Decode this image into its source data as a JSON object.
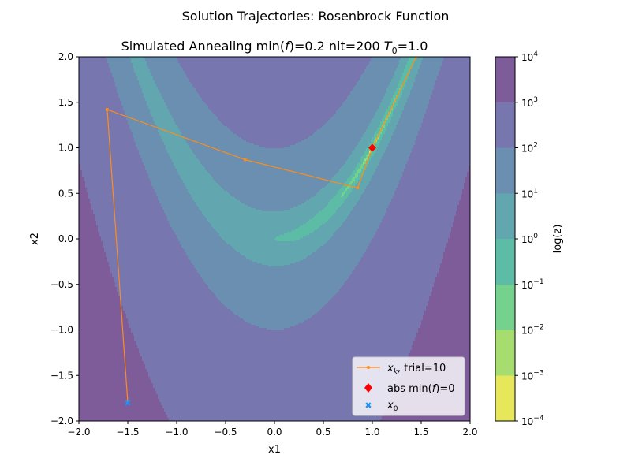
{
  "figure": {
    "suptitle": "Solution Trajectories: Rosenbrock Function",
    "title_prefix": "Simulated Annealing min(",
    "title_f": "f",
    "title_mid": ")=0.2 nit=200 ",
    "title_T": "T",
    "title_T_sub": "0",
    "title_suffix": "=1.0"
  },
  "chart_data": {
    "type": "contourf",
    "function": "Rosenbrock",
    "xlabel": "x1",
    "ylabel": "x2",
    "xlim": [
      -2.0,
      2.0
    ],
    "ylim": [
      -2.0,
      2.0
    ],
    "xticks": [
      "−2.0",
      "−1.5",
      "−1.0",
      "−0.5",
      "0.0",
      "0.5",
      "1.0",
      "1.5",
      "2.0"
    ],
    "yticks": [
      "−2.0",
      "−1.5",
      "−1.0",
      "−0.5",
      "0.0",
      "0.5",
      "1.0",
      "1.5",
      "2.0"
    ],
    "contour_levels_log10": [
      -4,
      -3,
      -2,
      -1,
      0,
      1,
      2,
      3,
      4
    ],
    "level_colors": [
      "#e6e75a",
      "#a7dd6e",
      "#74d18e",
      "#5cbca5",
      "#62a7b0",
      "#6a8fb0",
      "#7776ae",
      "#7e5c9a"
    ],
    "colorbar": {
      "label": "log(z)",
      "tick_exponents": [
        "4",
        "3",
        "2",
        "1",
        "0",
        "−1",
        "−2",
        "−3",
        "−4"
      ]
    },
    "series": [
      {
        "name": "trial=10",
        "type": "line",
        "color": "#ff8c1a",
        "points": [
          [
            -1.5,
            -1.8
          ],
          [
            -1.71,
            1.42
          ],
          [
            -0.3,
            0.87
          ],
          [
            0.85,
            0.56
          ],
          [
            1.0,
            1.0
          ],
          [
            1.45,
            2.0
          ]
        ]
      },
      {
        "name": "abs min(f)=0",
        "type": "marker",
        "marker": "diamond",
        "color": "#ff0000",
        "points": [
          [
            1.0,
            1.0
          ]
        ]
      },
      {
        "name": "x0",
        "type": "marker",
        "marker": "x",
        "color": "#1f8fff",
        "points": [
          [
            -1.5,
            -1.8
          ]
        ]
      }
    ],
    "legend": {
      "placement": "lower right",
      "xk_label_math": "x",
      "xk_label_sub": "k",
      "xk_label_rest": ", trial=10",
      "min_label_prefix": "abs min(",
      "min_label_f": "f",
      "min_label_suffix": ")=0",
      "x0_label_math": "x",
      "x0_label_sub": "0"
    }
  }
}
